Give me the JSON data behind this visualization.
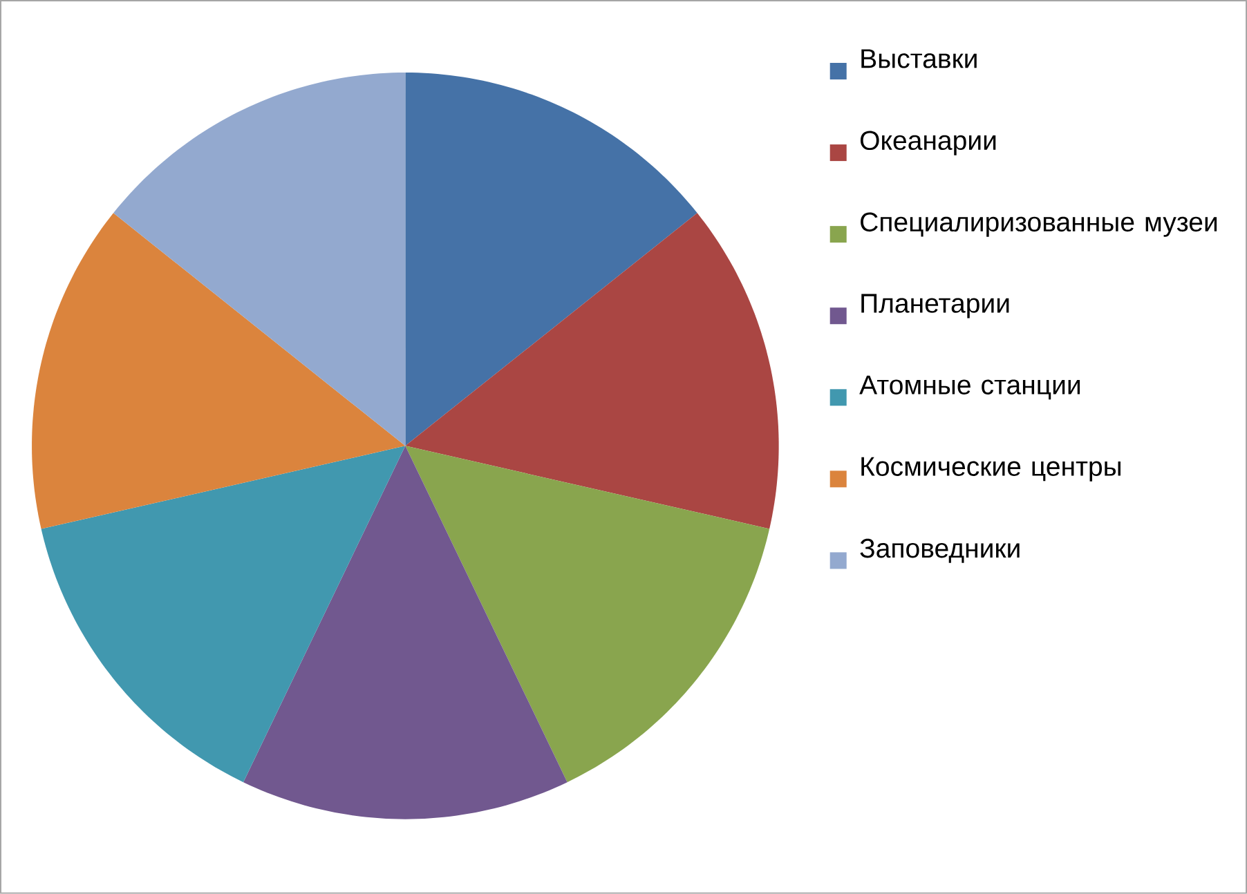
{
  "chart_data": {
    "type": "pie",
    "categories": [
      "Выставки",
      "Океанарии",
      "Специалиризованные музеи",
      "Планетарии",
      "Атомные станции",
      "Космические центры",
      "Заповедники"
    ],
    "values": [
      14.28,
      14.29,
      14.29,
      14.28,
      14.29,
      14.29,
      14.28
    ],
    "colors": [
      "#4572a7",
      "#aa4643",
      "#89a54e",
      "#71588f",
      "#4198af",
      "#db843d",
      "#93a9cf"
    ],
    "legend": "right"
  }
}
